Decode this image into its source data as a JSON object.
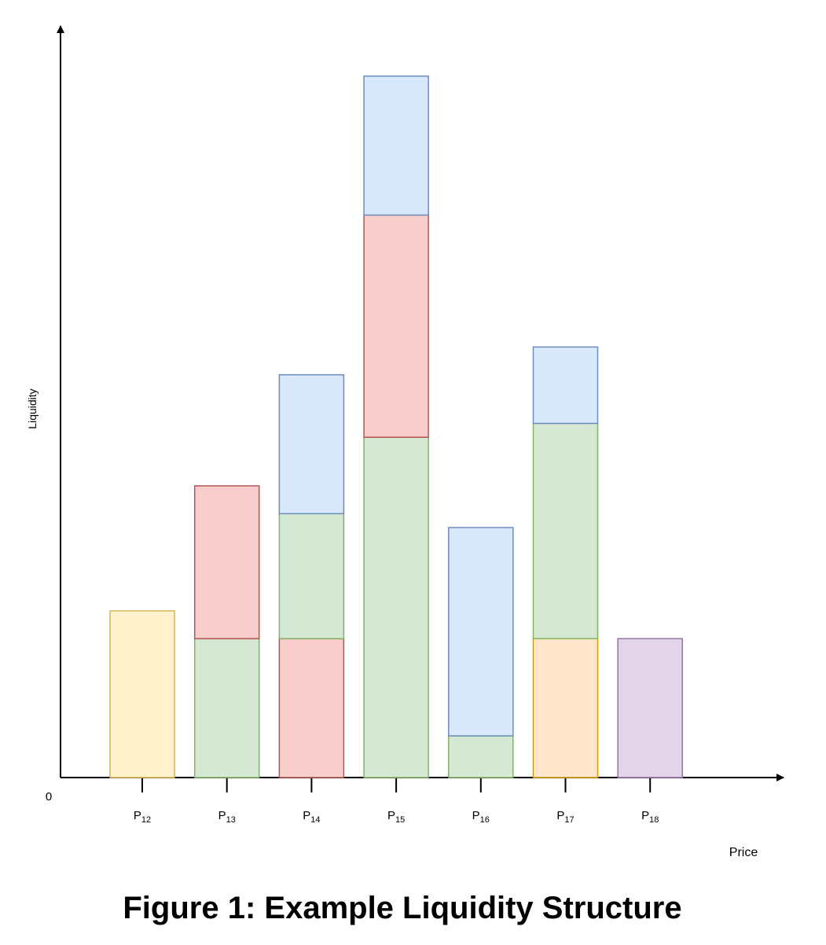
{
  "chart_data": {
    "type": "stacked-bar",
    "title": "Figure 1: Example Liquidity Structure",
    "x_label": "Price",
    "y_label": "Liquidity",
    "categories": [
      {
        "letter": "P",
        "index": "12"
      },
      {
        "letter": "P",
        "index": "13"
      },
      {
        "letter": "P",
        "index": "14"
      },
      {
        "letter": "P",
        "index": "15"
      },
      {
        "letter": "P",
        "index": "16"
      },
      {
        "letter": "P",
        "index": "17"
      },
      {
        "letter": "P",
        "index": "18"
      }
    ],
    "stacks": [
      [
        {
          "value": 24,
          "color": "#fff2cc",
          "stroke": "#d6b656"
        }
      ],
      [
        {
          "value": 20,
          "color": "#d5e8d4",
          "stroke": "#82b366"
        },
        {
          "value": 22,
          "color": "#f8cecc",
          "stroke": "#b85450"
        }
      ],
      [
        {
          "value": 20,
          "color": "#f8cecc",
          "stroke": "#b85450"
        },
        {
          "value": 18,
          "color": "#d5e8d4",
          "stroke": "#82b366"
        },
        {
          "value": 20,
          "color": "#dae8fc",
          "stroke": "#6c8ebf"
        }
      ],
      [
        {
          "value": 49,
          "color": "#d5e8d4",
          "stroke": "#82b366"
        },
        {
          "value": 32,
          "color": "#f8cecc",
          "stroke": "#b85450"
        },
        {
          "value": 20,
          "color": "#dae8fc",
          "stroke": "#6c8ebf"
        }
      ],
      [
        {
          "value": 6,
          "color": "#d5e8d4",
          "stroke": "#82b366"
        },
        {
          "value": 30,
          "color": "#dae8fc",
          "stroke": "#6c8ebf"
        }
      ],
      [
        {
          "value": 20,
          "color": "#ffe6cc",
          "stroke": "#d79b00"
        },
        {
          "value": 31,
          "color": "#d5e8d4",
          "stroke": "#82b366"
        },
        {
          "value": 11,
          "color": "#dae8fc",
          "stroke": "#6c8ebf"
        }
      ],
      [
        {
          "value": 20,
          "color": "#e1d5e7",
          "stroke": "#9673a6"
        }
      ]
    ],
    "ylim": [
      0,
      108
    ],
    "yticks": [
      0
    ],
    "grid": false
  }
}
